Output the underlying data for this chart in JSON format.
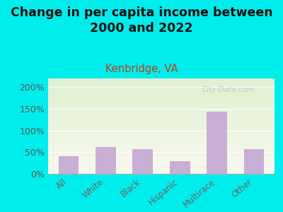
{
  "title": "Change in per capita income between\n2000 and 2022",
  "subtitle": "Kenbridge, VA",
  "categories": [
    "All",
    "White",
    "Black",
    "Hispanic",
    "Multirace",
    "Other"
  ],
  "values": [
    40,
    62,
    57,
    30,
    143,
    57
  ],
  "bar_color": "#c9aed6",
  "ylim": [
    0,
    220
  ],
  "yticks": [
    0,
    50,
    100,
    150,
    200
  ],
  "title_fontsize": 12.5,
  "subtitle_fontsize": 10.5,
  "subtitle_color": "#b5451b",
  "background_outer": "#00eded",
  "plot_bg_top": "#e8f5e0",
  "plot_bg_bottom": "#f8f8ee",
  "watermark": "City-Data.com",
  "tick_label_color": "#666666",
  "ytick_label_color": "#555555",
  "title_color": "#111111"
}
